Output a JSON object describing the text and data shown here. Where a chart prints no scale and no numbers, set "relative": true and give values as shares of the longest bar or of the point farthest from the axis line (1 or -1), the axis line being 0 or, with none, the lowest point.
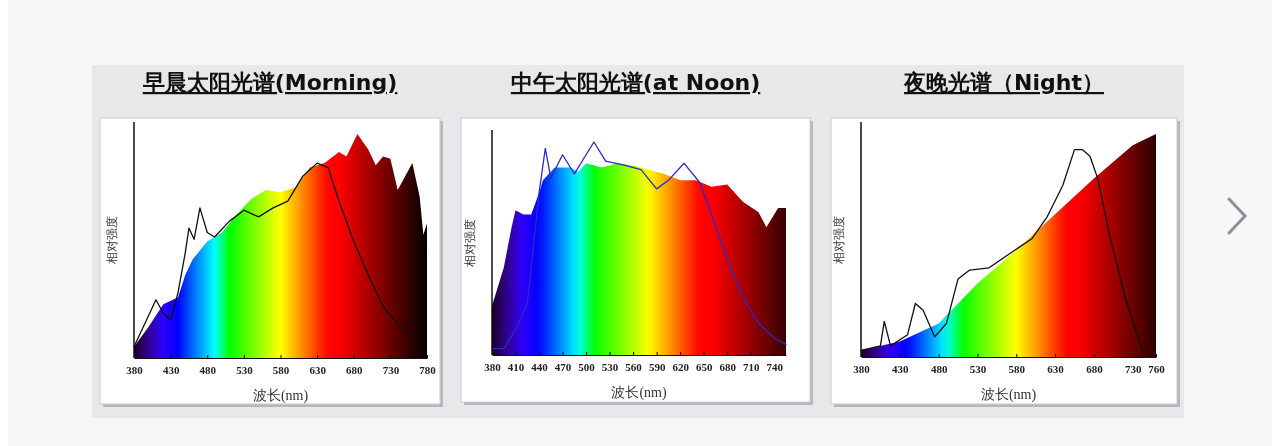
{
  "chart_data": [
    {
      "type": "area",
      "title": "早晨太阳光谱(Morning)",
      "xlabel": "波长(nm)",
      "ylabel": "相对强度",
      "relative": true,
      "xlim": [
        380,
        780
      ],
      "xticks": [
        380,
        430,
        480,
        530,
        580,
        630,
        680,
        730,
        780
      ],
      "series": [
        {
          "type": "area",
          "x": [
            380,
            400,
            420,
            440,
            450,
            460,
            480,
            500,
            520,
            540,
            560,
            580,
            600,
            620,
            640,
            660,
            670,
            685,
            700,
            710,
            720,
            730,
            740,
            760,
            770,
            775,
            780
          ],
          "values": [
            0.05,
            0.14,
            0.24,
            0.27,
            0.37,
            0.44,
            0.52,
            0.56,
            0.64,
            0.71,
            0.75,
            0.74,
            0.76,
            0.85,
            0.87,
            0.92,
            0.9,
            1,
            0.93,
            0.86,
            0.9,
            0.89,
            0.75,
            0.87,
            0.72,
            0.55,
            0.6
          ]
        },
        {
          "type": "line",
          "color": "#111111",
          "x": [
            380,
            410,
            420,
            430,
            440,
            450,
            455,
            462,
            470,
            480,
            490,
            510,
            530,
            550,
            570,
            590,
            610,
            630,
            645,
            660,
            680,
            700,
            720,
            740,
            760
          ],
          "values": [
            0.05,
            0.26,
            0.2,
            0.17,
            0.29,
            0.47,
            0.58,
            0.53,
            0.67,
            0.56,
            0.54,
            0.61,
            0.66,
            0.63,
            0.67,
            0.7,
            0.81,
            0.87,
            0.85,
            0.7,
            0.52,
            0.37,
            0.23,
            0.15,
            0.1
          ]
        }
      ]
    },
    {
      "type": "area",
      "title": "中午太阳光谱(at Noon)",
      "xlabel": "波长(nm)",
      "ylabel": "相对强度",
      "relative": true,
      "xlim": [
        380,
        755
      ],
      "xticks": [
        380,
        410,
        440,
        470,
        500,
        530,
        560,
        590,
        620,
        650,
        680,
        710,
        740
      ],
      "series": [
        {
          "type": "area",
          "x": [
            380,
            395,
            405,
            410,
            420,
            430,
            440,
            445,
            460,
            480,
            490,
            500,
            520,
            540,
            560,
            580,
            600,
            620,
            640,
            660,
            680,
            700,
            720,
            730,
            745,
            755
          ],
          "values": [
            0.23,
            0.41,
            0.6,
            0.68,
            0.66,
            0.66,
            0.76,
            0.82,
            0.88,
            0.88,
            0.86,
            0.9,
            0.88,
            0.9,
            0.89,
            0.87,
            0.85,
            0.82,
            0.82,
            0.79,
            0.8,
            0.72,
            0.67,
            0.6,
            0.69,
            0.69
          ]
        },
        {
          "type": "line",
          "color": "#2a2ac8",
          "x": [
            380,
            395,
            410,
            425,
            440,
            448,
            455,
            470,
            485,
            500,
            510,
            525,
            550,
            570,
            590,
            605,
            625,
            645,
            660,
            680,
            700,
            720,
            740,
            755
          ],
          "values": [
            0.03,
            0.03,
            0.12,
            0.24,
            0.76,
            0.97,
            0.83,
            0.94,
            0.85,
            0.94,
            1,
            0.91,
            0.89,
            0.87,
            0.78,
            0.82,
            0.9,
            0.81,
            0.66,
            0.45,
            0.27,
            0.15,
            0.08,
            0.05
          ]
        }
      ]
    },
    {
      "type": "area",
      "title": "夜晚光谱（Night）",
      "xlabel": "波长(nm)",
      "ylabel": "相对强度",
      "relative": true,
      "xlim": [
        380,
        760
      ],
      "xticks": [
        380,
        430,
        480,
        530,
        580,
        630,
        680,
        730,
        760
      ],
      "series": [
        {
          "type": "area",
          "x": [
            380,
            430,
            480,
            530,
            580,
            630,
            680,
            730,
            760
          ],
          "values": [
            0.03,
            0.07,
            0.15,
            0.33,
            0.48,
            0.64,
            0.8,
            0.95,
            1
          ]
        },
        {
          "type": "line",
          "color": "#111111",
          "x": [
            380,
            405,
            410,
            418,
            440,
            450,
            460,
            475,
            490,
            505,
            520,
            545,
            570,
            600,
            620,
            640,
            655,
            665,
            675,
            685,
            700,
            720,
            745
          ],
          "values": [
            0.03,
            0.05,
            0.16,
            0.05,
            0.1,
            0.24,
            0.21,
            0.09,
            0.15,
            0.35,
            0.39,
            0.4,
            0.46,
            0.53,
            0.63,
            0.77,
            0.93,
            0.93,
            0.9,
            0.8,
            0.55,
            0.27,
            0
          ]
        }
      ]
    }
  ]
}
